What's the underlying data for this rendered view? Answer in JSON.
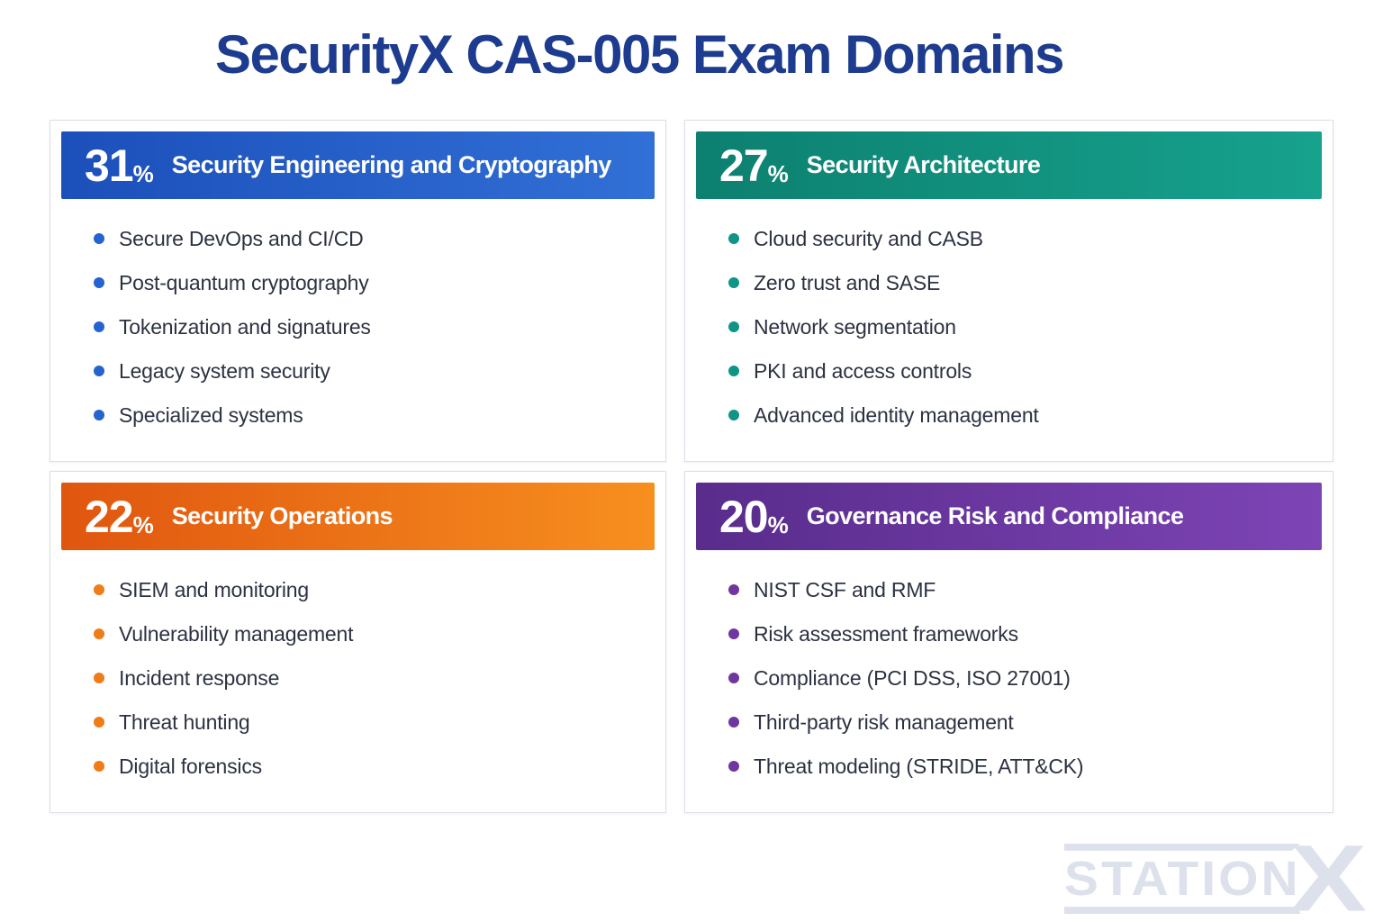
{
  "page": {
    "title": "SecurityX CAS-005 Exam Domains",
    "title_color": "#1e3c8f",
    "background": "#ffffff"
  },
  "cards": [
    {
      "id": "security-engineering-and-cryptography",
      "percent": "31",
      "percent_sign": "%",
      "title": "Security Engineering and Cryptography",
      "gradient_start": "#1c4fba",
      "gradient_end": "#3170d6",
      "dot_color": "#2563d0",
      "bullets": [
        "Secure DevOps and CI/CD",
        "Post-quantum cryptography",
        "Tokenization and signatures",
        "Legacy system security",
        "Specialized systems"
      ]
    },
    {
      "id": "security-architecture",
      "percent": "27",
      "percent_sign": "%",
      "title": "Security Architecture",
      "gradient_start": "#0d8070",
      "gradient_end": "#16a28d",
      "dot_color": "#0f9486",
      "bullets": [
        "Cloud security and CASB",
        "Zero trust and SASE",
        "Network segmentation",
        "PKI and access controls",
        "Advanced identity management"
      ]
    },
    {
      "id": "security-operations",
      "percent": "22",
      "percent_sign": "%",
      "title": "Security Operations",
      "gradient_start": "#e0560f",
      "gradient_end": "#f78f1f",
      "dot_color": "#f07c17",
      "bullets": [
        "SIEM and monitoring",
        "Vulnerability management",
        "Incident response",
        "Threat hunting",
        "Digital forensics"
      ]
    },
    {
      "id": "governance-risk-and-compliance",
      "percent": "20",
      "percent_sign": "%",
      "title": "Governance Risk and Compliance",
      "gradient_start": "#592c8c",
      "gradient_end": "#7d44b5",
      "dot_color": "#70369f",
      "bullets": [
        "NIST CSF and RMF",
        "Risk assessment frameworks",
        "Compliance (PCI DSS, ISO 27001)",
        "Third-party risk management",
        "Threat modeling (STRIDE, ATT&CK)"
      ]
    }
  ],
  "logo": {
    "word": "STATION",
    "x": "X",
    "color": "#dde1ec"
  }
}
